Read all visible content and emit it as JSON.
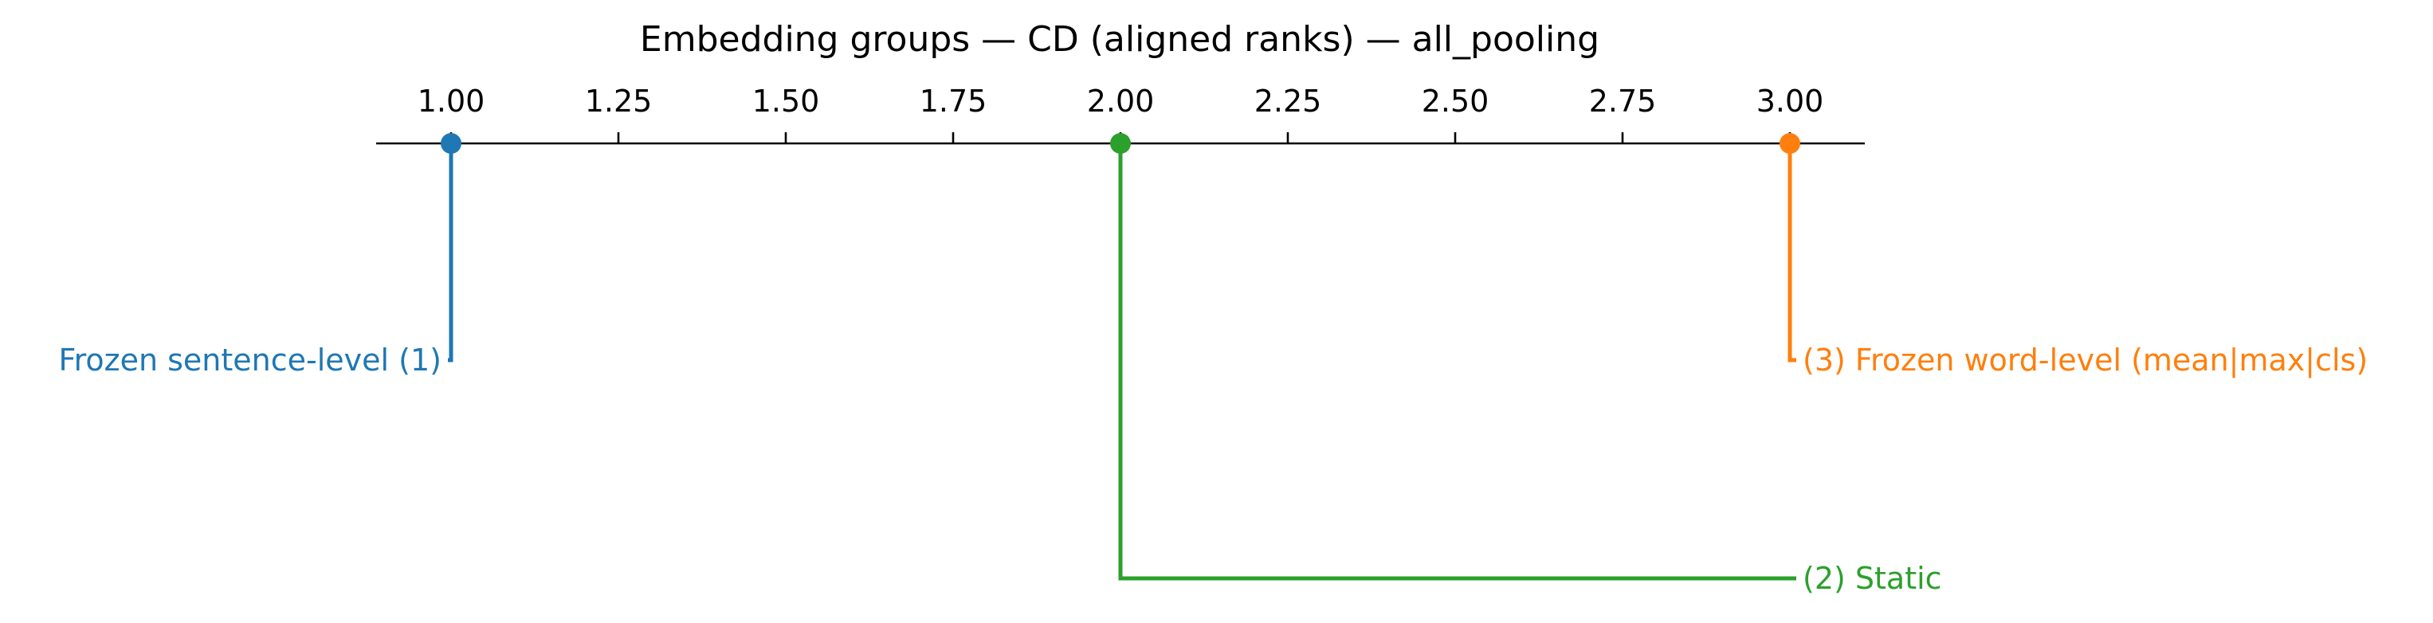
{
  "chart_data": {
    "type": "scatter",
    "title": "Embedding groups — CD (aligned ranks) — all_pooling",
    "xlim": [
      0.88,
      3.12
    ],
    "ticks": [
      "1.00",
      "1.25",
      "1.50",
      "1.75",
      "2.00",
      "2.25",
      "2.50",
      "2.75",
      "3.00"
    ],
    "tick_values": [
      1.0,
      1.25,
      1.5,
      1.75,
      2.0,
      2.25,
      2.5,
      2.75,
      3.0
    ],
    "series": [
      {
        "name": "Frozen sentence-level",
        "rank": 1,
        "value": 1.0,
        "label": "Frozen sentence-level (1)",
        "color": "#1f77b4",
        "side": "left"
      },
      {
        "name": "Static",
        "rank": 2,
        "value": 2.0,
        "label": "(2) Static",
        "color": "#2ca02c",
        "side": "right"
      },
      {
        "name": "Frozen word-level (mean|max|cls)",
        "rank": 3,
        "value": 3.0,
        "label": "(3) Frozen word-level (mean|max|cls)",
        "color": "#ff7f0e",
        "side": "right"
      }
    ]
  }
}
